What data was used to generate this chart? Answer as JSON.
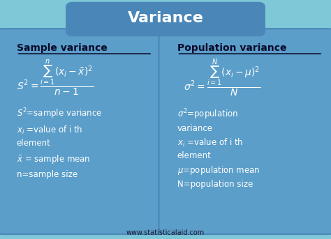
{
  "bg_color": "#7ec8d8",
  "title_box_color": "#4a86b8",
  "title_text": "Variance",
  "title_text_color": "#ffffff",
  "card_color": "#5b9ec9",
  "card_edge_color": "#4a86b8",
  "footer_text": "www.statisticalaid.com",
  "footer_color": "#1a1a2e",
  "left_title": "Sample variance",
  "right_title": "Population variance",
  "text_color": "#ffffff",
  "dark_text_color": "#0a0a2a"
}
